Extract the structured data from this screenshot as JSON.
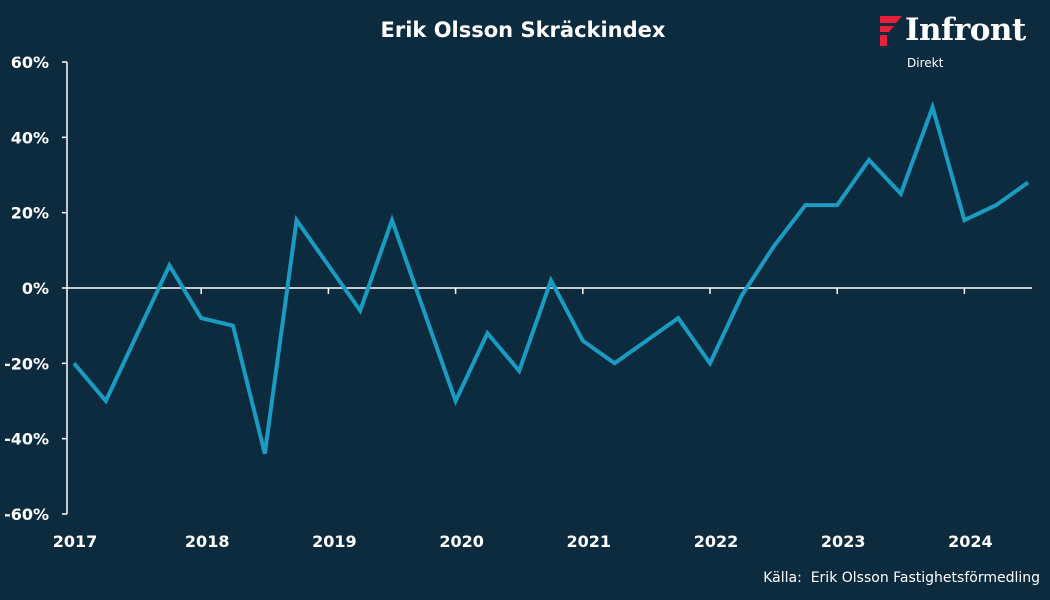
{
  "brand": {
    "logo_text": "Infront",
    "logo_sub": "Direkt",
    "accent_color": "#e8203a"
  },
  "source": "Källa:  Erik Olsson Fastighetsförmedling",
  "chart_data": {
    "type": "line",
    "title": "Erik Olsson Skräckindex",
    "xlabel": "",
    "ylabel": "",
    "ylim": [
      -60,
      60
    ],
    "y_ticks": [
      60,
      40,
      20,
      0,
      -20,
      -40,
      -60
    ],
    "y_tick_labels": [
      "60%",
      "40%",
      "20%",
      "0%",
      "-20%",
      "-40%",
      "-60%"
    ],
    "x_ticks": [
      "2017",
      "2018",
      "2019",
      "2020",
      "2021",
      "2022",
      "2023",
      "2024"
    ],
    "line_color": "#1a9bc2",
    "grid": false,
    "legend": "none",
    "series": [
      {
        "x": [
          "2017 Q1",
          "2017 Q2",
          "2017 Q3",
          "2017 Q4",
          "2018 Q1",
          "2018 Q2",
          "2018 Q3",
          "2018 Q4",
          "2019 Q1",
          "2019 Q2",
          "2019 Q3",
          "2019 Q4",
          "2020 Q1",
          "2020 Q2",
          "2020 Q3",
          "2020 Q4",
          "2021 Q1",
          "2021 Q2",
          "2021 Q3",
          "2021 Q4",
          "2022 Q1",
          "2022 Q2",
          "2022 Q3",
          "2022 Q4",
          "2023 Q1",
          "2023 Q2",
          "2023 Q3",
          "2023 Q4",
          "2024 Q1",
          "2024 Q2",
          "2024 Q3"
        ],
        "values": [
          -20,
          -30,
          -12,
          6,
          -8,
          -10,
          -44,
          18,
          6,
          -6,
          18,
          -6,
          -30,
          -12,
          -22,
          2,
          -14,
          -20,
          -14,
          -8,
          -20,
          -2,
          11,
          22,
          22,
          34,
          25,
          48,
          18,
          22,
          28
        ]
      }
    ]
  }
}
